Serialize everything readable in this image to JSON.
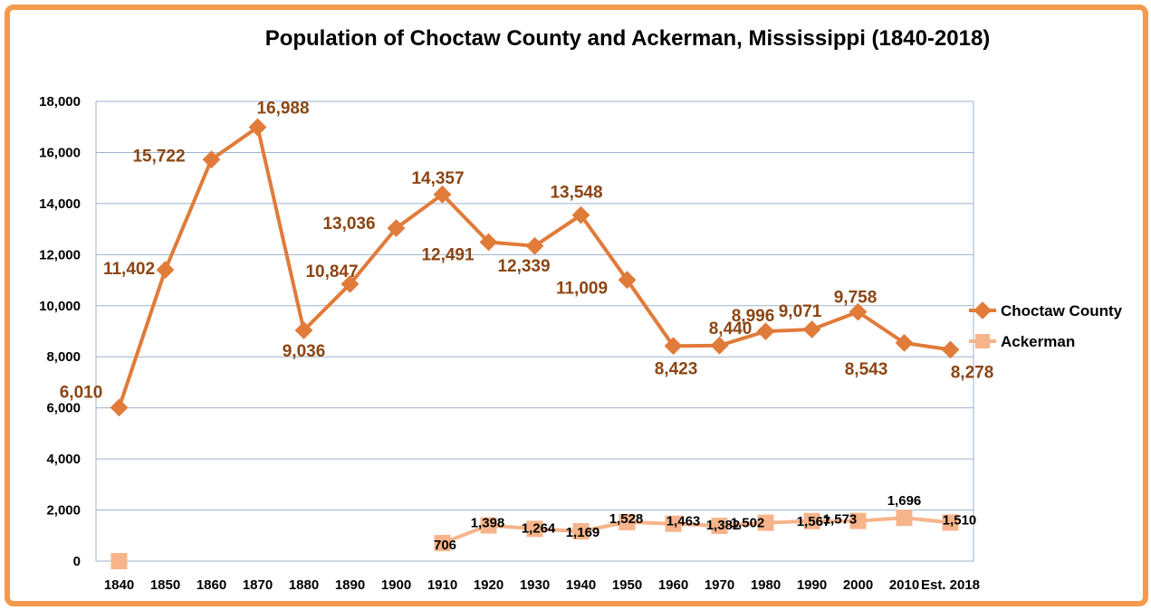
{
  "chart_data": {
    "type": "line",
    "title": "Population of Choctaw County and Ackerman, Mississippi (1840-2018)",
    "xlabel": "",
    "ylabel": "",
    "ylim": [
      0,
      18000
    ],
    "yticks": [
      0,
      2000,
      4000,
      6000,
      8000,
      10000,
      12000,
      14000,
      16000,
      18000
    ],
    "ytick_labels": [
      "0",
      "2,000",
      "4,000",
      "6,000",
      "8,000",
      "10,000",
      "12,000",
      "14,000",
      "16,000",
      "18,000"
    ],
    "categories": [
      "1840",
      "1850",
      "1860",
      "1870",
      "1880",
      "1890",
      "1900",
      "1910",
      "1920",
      "1930",
      "1940",
      "1950",
      "1960",
      "1970",
      "1980",
      "1990",
      "2000",
      "2010",
      "Est. 2018"
    ],
    "grid": "horizontal",
    "legend_position": "right",
    "series": [
      {
        "name": "Choctaw County",
        "color": "#e07b39",
        "marker": "diamond",
        "values": [
          6010,
          11402,
          15722,
          16988,
          9036,
          10847,
          13036,
          14357,
          12491,
          12339,
          13548,
          11009,
          8423,
          8440,
          8996,
          9071,
          9758,
          8543,
          8278
        ],
        "labels": [
          "6,010",
          "11,402",
          "15,722",
          "16,988",
          "9,036",
          "10,847",
          "13,036",
          "14,357",
          "12,491",
          "12,339",
          "13,548",
          "11,009",
          "8,423",
          "8,440",
          "8,996",
          "9,071",
          "9,758",
          "8,543",
          "8,278"
        ]
      },
      {
        "name": "Ackerman",
        "color": "#f7b48a",
        "marker": "square",
        "values": [
          0,
          null,
          null,
          null,
          null,
          null,
          null,
          706,
          1398,
          1264,
          1169,
          1528,
          1463,
          1382,
          1502,
          1567,
          1573,
          1696,
          1510
        ],
        "labels": [
          "",
          "",
          "",
          "",
          "",
          "",
          "",
          "706",
          "1,398",
          "1,264",
          "1,169",
          "1,528",
          "1,463",
          "1,382",
          "1,502",
          "1,567",
          "1,573",
          "1,696",
          "1,510"
        ]
      }
    ]
  }
}
